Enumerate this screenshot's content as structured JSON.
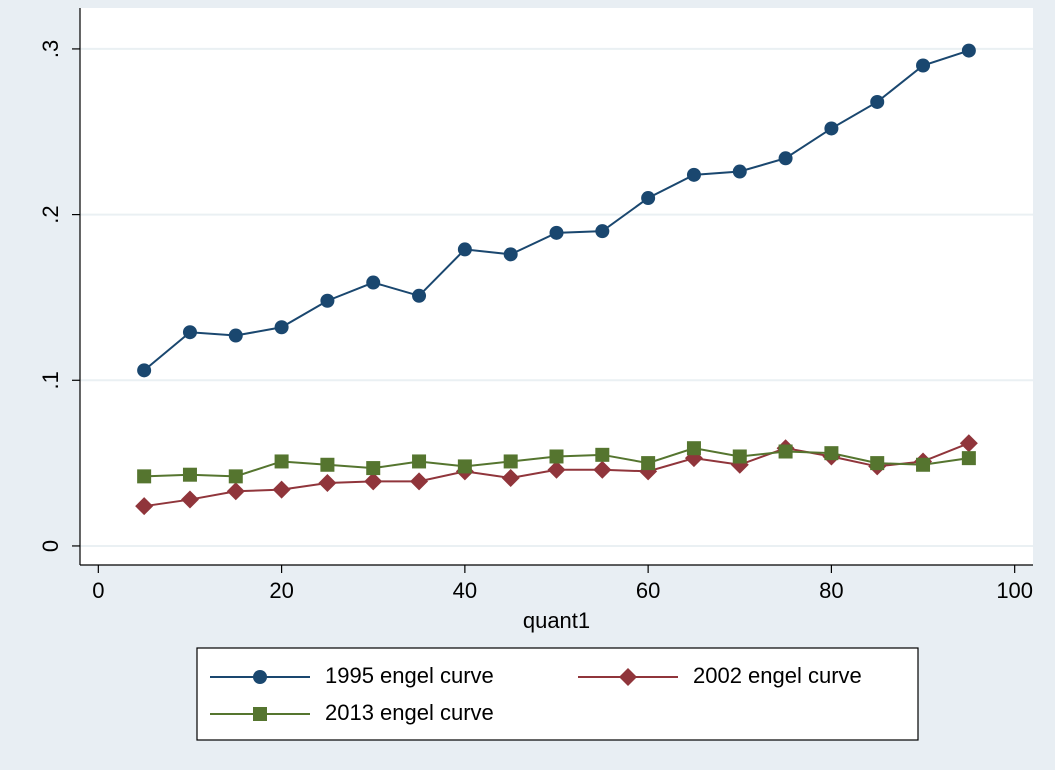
{
  "chart_data": {
    "type": "line",
    "x_label": "quant1",
    "x": [
      5,
      10,
      15,
      20,
      25,
      30,
      35,
      40,
      45,
      50,
      55,
      60,
      65,
      70,
      75,
      80,
      85,
      90,
      95
    ],
    "series": [
      {
        "name": "1995 engel curve",
        "color": "#1a476f",
        "marker": "circle",
        "values": [
          0.106,
          0.129,
          0.127,
          0.132,
          0.148,
          0.159,
          0.151,
          0.179,
          0.176,
          0.189,
          0.19,
          0.21,
          0.224,
          0.226,
          0.234,
          0.252,
          0.268,
          0.29,
          0.299
        ]
      },
      {
        "name": "2002 engel curve",
        "color": "#90353b",
        "marker": "diamond",
        "values": [
          0.024,
          0.028,
          0.033,
          0.034,
          0.038,
          0.039,
          0.039,
          0.045,
          0.041,
          0.046,
          0.046,
          0.045,
          0.053,
          0.049,
          0.059,
          0.054,
          0.048,
          0.051,
          0.062
        ]
      },
      {
        "name": "2013 engel curve",
        "color": "#55752f",
        "marker": "square",
        "values": [
          0.042,
          0.043,
          0.042,
          0.051,
          0.049,
          0.047,
          0.051,
          0.048,
          0.051,
          0.054,
          0.055,
          0.05,
          0.059,
          0.054,
          0.057,
          0.056,
          0.05,
          0.049,
          0.053
        ]
      }
    ],
    "xlim": [
      -2,
      102
    ],
    "xticks": [
      0,
      20,
      40,
      60,
      80,
      100
    ],
    "ylim": [
      -0.0115,
      0.3247
    ],
    "yticks": [
      0,
      {
        "value": 0.1,
        "label": ".1"
      },
      {
        "value": 0.2,
        "label": ".2"
      },
      {
        "value": 0.3,
        "label": ".3"
      }
    ],
    "grid": true
  }
}
